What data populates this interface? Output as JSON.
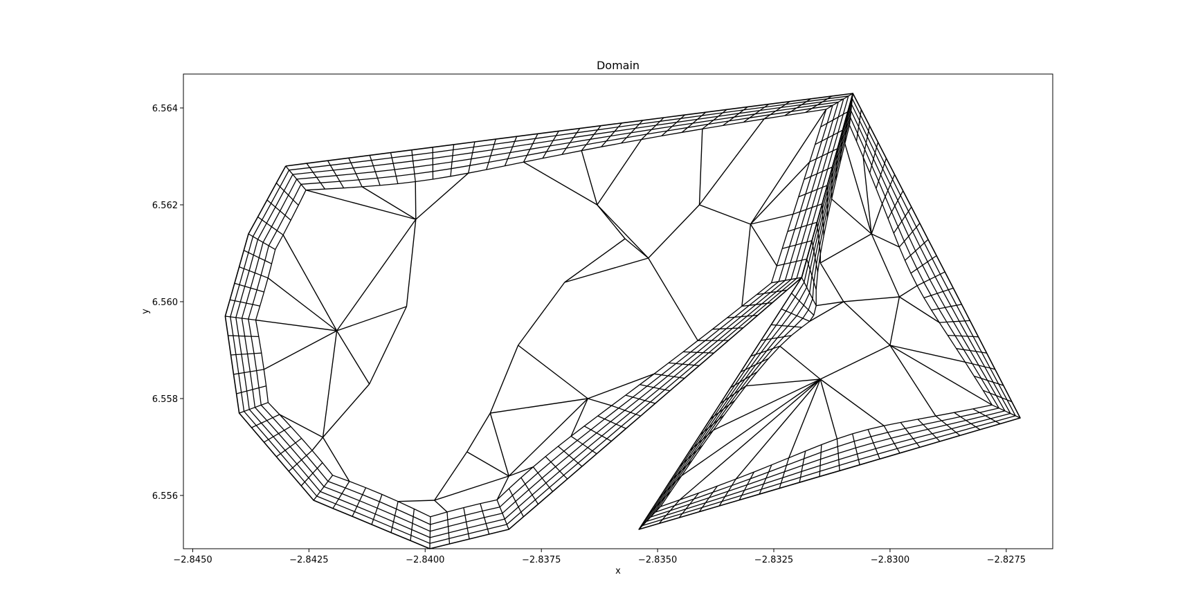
{
  "chart_data": {
    "type": "mesh",
    "title": "Domain",
    "xlabel": "x",
    "ylabel": "y",
    "xlim": [
      -2.8452,
      -2.8265
    ],
    "ylim": [
      6.5549,
      6.5647
    ],
    "x_ticks": [
      -2.845,
      -2.8425,
      -2.84,
      -2.8375,
      -2.835,
      -2.8325,
      -2.83,
      -2.8275
    ],
    "x_tick_labels": [
      "−2.8450",
      "−2.8425",
      "−2.8400",
      "−2.8375",
      "−2.8350",
      "−2.8325",
      "−2.8300",
      "−2.8275"
    ],
    "y_ticks": [
      6.556,
      6.558,
      6.56,
      6.562,
      6.564
    ],
    "y_tick_labels": [
      "6.556",
      "6.558",
      "6.560",
      "6.562",
      "6.564"
    ],
    "grid": false,
    "mesh_color": "#000000",
    "regions": [
      {
        "name": "sector",
        "outline": [
          [
            -2.843,
            6.5628
          ],
          [
            -2.8308,
            6.5643
          ],
          [
            -2.8319,
            6.5605
          ],
          [
            -2.8382,
            6.5553
          ],
          [
            -2.8399,
            6.5549
          ],
          [
            -2.8424,
            6.5559
          ],
          [
            -2.844,
            6.5577
          ],
          [
            -2.8443,
            6.5597
          ],
          [
            -2.8438,
            6.5614
          ]
        ]
      },
      {
        "name": "quad",
        "outline": [
          [
            -2.8319,
            6.5605
          ],
          [
            -2.8308,
            6.5643
          ],
          [
            -2.8272,
            6.5576
          ],
          [
            -2.8354,
            6.5553
          ]
        ]
      }
    ],
    "approx_nodes": [
      [
        -2.8404,
        6.5599
      ],
      [
        -2.8412,
        6.5583
      ],
      [
        -2.838,
        6.5591
      ],
      [
        -2.837,
        6.5604
      ],
      [
        -2.8391,
        6.5569
      ],
      [
        -2.8402,
        6.5617
      ],
      [
        -2.8365,
        6.558
      ],
      [
        -2.8357,
        6.5613
      ],
      [
        -2.8382,
        6.5564
      ],
      [
        -2.8341,
        6.562
      ],
      [
        -2.8363,
        6.562
      ],
      [
        -2.8352,
        6.5609
      ],
      [
        -2.8298,
        6.5601
      ],
      [
        -2.831,
        6.56
      ],
      [
        -2.83,
        6.5591
      ],
      [
        -2.8315,
        6.5584
      ],
      [
        -2.8315,
        6.5608
      ],
      [
        -2.8304,
        6.5614
      ],
      [
        -2.833,
        6.5616
      ],
      [
        -2.8386,
        6.5577
      ],
      [
        -2.8398,
        6.5559
      ],
      [
        -2.8419,
        6.5594
      ],
      [
        -2.8422,
        6.5572
      ]
    ]
  }
}
